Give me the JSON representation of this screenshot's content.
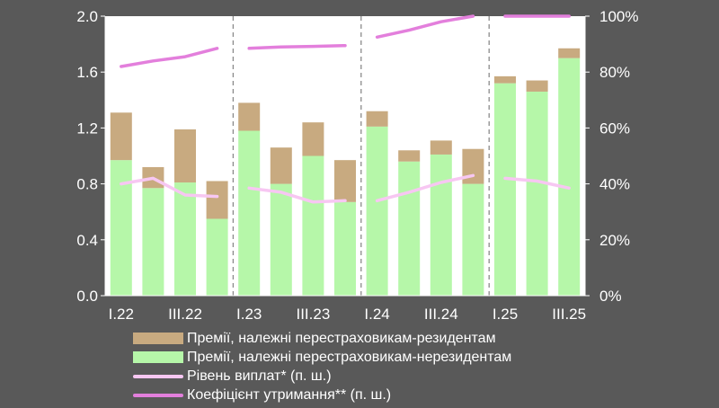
{
  "chart_data": {
    "type": "bar",
    "categories": [
      "I.22",
      "II.22",
      "III.22",
      "IV.22",
      "I.23",
      "II.23",
      "III.23",
      "IV.23",
      "I.24",
      "II.24",
      "III.24",
      "IV.24",
      "I.25",
      "II.25",
      "III.25"
    ],
    "x_tick_labels": [
      "I.22",
      "III.22",
      "I.23",
      "III.23",
      "I.24",
      "III.24",
      "I.25",
      "III.25"
    ],
    "y_left_ticks": [
      "0.0",
      "0.4",
      "0.8",
      "1.2",
      "1.6",
      "2.0"
    ],
    "y_right_ticks": [
      "0%",
      "20%",
      "40%",
      "60%",
      "80%",
      "100%"
    ],
    "ylim_left": [
      0,
      2.0
    ],
    "ylim_right": [
      0,
      100
    ],
    "stacked": true,
    "series": [
      {
        "name": "Премії, належні перестраховикам-нерезидентам",
        "kind": "bar",
        "axis": "left",
        "color": "#b6f7a9",
        "values": [
          0.97,
          0.77,
          0.81,
          0.55,
          1.18,
          0.8,
          1.0,
          0.67,
          1.21,
          0.96,
          1.01,
          0.8,
          1.52,
          1.46,
          1.7
        ]
      },
      {
        "name": "Премії, належні перестраховикам-резидентам",
        "kind": "bar",
        "axis": "left",
        "color": "#c8aa80",
        "values": [
          0.34,
          0.15,
          0.38,
          0.27,
          0.2,
          0.26,
          0.24,
          0.3,
          0.11,
          0.08,
          0.1,
          0.25,
          0.05,
          0.08,
          0.07
        ]
      },
      {
        "name": "Рівень виплат* (п. ш.)",
        "kind": "line",
        "axis": "right",
        "color": "#f7c7f2",
        "segments": [
          [
            40,
            42,
            36,
            35.5
          ],
          [
            38.5,
            37,
            33.5,
            34
          ],
          [
            34,
            37,
            40.5,
            43
          ],
          [
            42,
            41,
            38.5
          ]
        ]
      },
      {
        "name": "Коефіцієнт утримання** (п. ш.)",
        "kind": "line",
        "axis": "right",
        "color": "#e37fdc",
        "segments": [
          [
            82,
            84,
            85.5,
            88.5
          ],
          [
            88.5,
            89,
            89.2,
            89.5
          ],
          [
            92.5,
            95,
            98,
            100
          ],
          [
            100,
            100,
            100
          ]
        ]
      }
    ],
    "legend_position": "bottom",
    "grid": false
  },
  "colors": {
    "background": "#595959",
    "plot_background": "#ffffff",
    "axis": "#ffffff",
    "divider": "#8a8a8a"
  }
}
